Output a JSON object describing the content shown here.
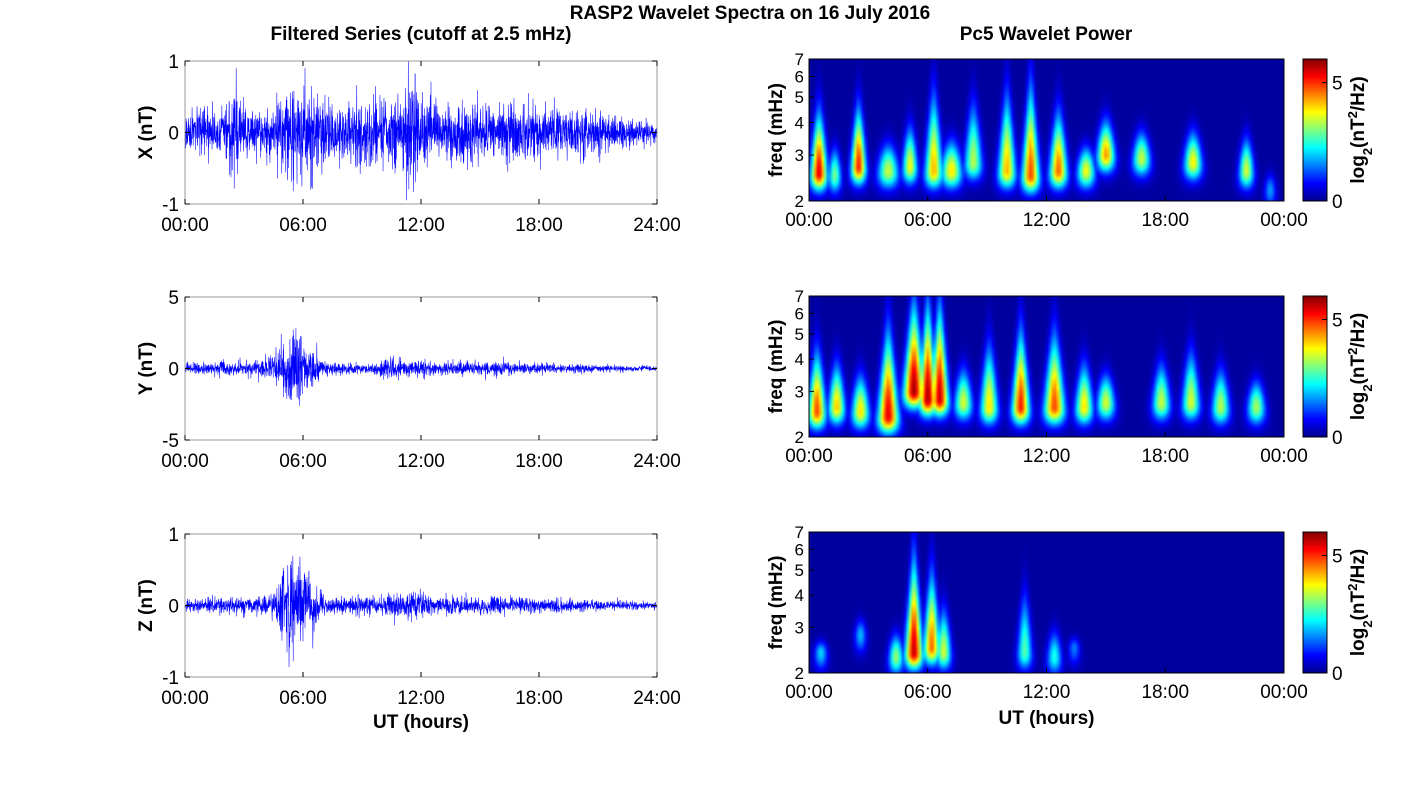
{
  "figure": {
    "title": "RASP2 Wavelet Spectra on 16 July 2016",
    "left_title": "Filtered Series (cutoff at 2.5 mHz)",
    "right_title": "Pc5 Wavelet Power"
  },
  "colors": {
    "series_line": "#0000ff",
    "spectrum_background": "#00008f",
    "colormap": "jet"
  },
  "chart_data": [
    {
      "type": "line",
      "component": "X",
      "ylabel": "X (nT)",
      "xlabel": "",
      "x_ticks": [
        "00:00",
        "06:00",
        "12:00",
        "18:00",
        "24:00"
      ],
      "xlim_hours": [
        0,
        24
      ],
      "y_ticks": [
        "1",
        "0",
        "-1"
      ],
      "ylim": [
        -1,
        1
      ],
      "grid": false,
      "series": [
        {
          "hour_start": 0,
          "hour_step": 0.5,
          "amplitude_envelope": [
            0.22,
            0.25,
            0.28,
            0.3,
            0.28,
            0.55,
            0.3,
            0.28,
            0.27,
            0.3,
            0.5,
            0.55,
            0.6,
            0.55,
            0.4,
            0.35,
            0.38,
            0.4,
            0.45,
            0.4,
            0.38,
            0.4,
            0.42,
            0.65,
            0.45,
            0.35,
            0.35,
            0.35,
            0.4,
            0.38,
            0.35,
            0.3,
            0.38,
            0.4,
            0.35,
            0.32,
            0.3,
            0.3,
            0.28,
            0.28,
            0.25,
            0.3,
            0.25,
            0.22,
            0.2,
            0.22,
            0.18,
            0.15,
            0.15
          ],
          "peaks": [
            {
              "hour": 2.6,
              "value": 0.9
            },
            {
              "hour": 6.1,
              "value": 0.9
            },
            {
              "hour": 11.7,
              "value": 0.82
            },
            {
              "hour": 5.5,
              "value": -0.82
            },
            {
              "hour": 6.4,
              "value": -0.8
            }
          ]
        }
      ]
    },
    {
      "type": "line",
      "component": "Y",
      "ylabel": "Y (nT)",
      "xlabel": "",
      "x_ticks": [
        "00:00",
        "06:00",
        "12:00",
        "18:00",
        "24:00"
      ],
      "xlim_hours": [
        0,
        24
      ],
      "y_ticks": [
        "5",
        "0",
        "-5"
      ],
      "ylim": [
        -5,
        5
      ],
      "grid": false,
      "series": [
        {
          "hour_start": 0,
          "hour_step": 0.5,
          "amplitude_envelope": [
            0.3,
            0.35,
            0.3,
            0.35,
            0.4,
            0.4,
            0.45,
            0.45,
            0.6,
            0.7,
            1.8,
            2.6,
            1.6,
            1.2,
            0.5,
            0.4,
            0.35,
            0.35,
            0.35,
            0.4,
            0.45,
            0.6,
            0.55,
            0.45,
            0.6,
            0.45,
            0.4,
            0.4,
            0.4,
            0.45,
            0.4,
            0.45,
            0.5,
            0.45,
            0.35,
            0.3,
            0.35,
            0.35,
            0.3,
            0.3,
            0.3,
            0.25,
            0.25,
            0.25,
            0.2,
            0.2,
            0.2,
            0.18,
            0.15
          ],
          "peaks": [
            {
              "hour": 5.5,
              "value": 2.7
            },
            {
              "hour": 5.7,
              "value": -2.0
            },
            {
              "hour": 6.7,
              "value": 1.8
            }
          ]
        }
      ]
    },
    {
      "type": "line",
      "component": "Z",
      "ylabel": "Z (nT)",
      "xlabel": "UT (hours)",
      "x_ticks": [
        "00:00",
        "06:00",
        "12:00",
        "18:00",
        "24:00"
      ],
      "xlim_hours": [
        0,
        24
      ],
      "y_ticks": [
        "1",
        "0",
        "-1"
      ],
      "ylim": [
        -1,
        1
      ],
      "grid": false,
      "series": [
        {
          "hour_start": 0,
          "hour_step": 0.5,
          "amplitude_envelope": [
            0.06,
            0.08,
            0.08,
            0.1,
            0.1,
            0.12,
            0.1,
            0.1,
            0.12,
            0.15,
            0.45,
            0.6,
            0.45,
            0.3,
            0.12,
            0.12,
            0.1,
            0.1,
            0.12,
            0.12,
            0.12,
            0.15,
            0.15,
            0.2,
            0.18,
            0.12,
            0.1,
            0.12,
            0.12,
            0.1,
            0.1,
            0.12,
            0.12,
            0.1,
            0.1,
            0.1,
            0.08,
            0.08,
            0.08,
            0.08,
            0.07,
            0.07,
            0.07,
            0.06,
            0.06,
            0.06,
            0.05,
            0.05,
            0.05
          ],
          "peaks": [
            {
              "hour": 5.4,
              "value": 0.62
            },
            {
              "hour": 5.5,
              "value": -0.78
            },
            {
              "hour": 6.3,
              "value": 0.48
            },
            {
              "hour": 6.5,
              "value": -0.6
            }
          ]
        }
      ]
    },
    {
      "type": "heatmap",
      "component": "X",
      "ylabel": "freq (mHz)",
      "xlabel": "",
      "x_ticks": [
        "00:00",
        "06:00",
        "12:00",
        "18:00",
        "00:00"
      ],
      "xlim_hours": [
        0,
        24
      ],
      "y_scale": "log",
      "y_ticks": [
        "7",
        "6",
        "5",
        "4",
        "3",
        "2"
      ],
      "ylim_mhz": [
        2,
        7
      ],
      "colorbar": {
        "label_main": "log",
        "label_sub": "2",
        "label_rest": "(nT",
        "label_sup": "2",
        "label_end": "/Hz)",
        "ticks": [
          "5",
          "0"
        ],
        "clim": [
          0,
          6
        ]
      },
      "blobs": [
        {
          "hour": 0.5,
          "freq_mhz": 2.55,
          "power": 5.6,
          "width_hours": 0.28,
          "f_hi": 4.6
        },
        {
          "hour": 1.3,
          "freq_mhz": 2.5,
          "power": 3.0,
          "width_hours": 0.22,
          "f_hi": 3.3
        },
        {
          "hour": 2.5,
          "freq_mhz": 2.7,
          "power": 5.3,
          "width_hours": 0.25,
          "f_hi": 4.8
        },
        {
          "hour": 4.0,
          "freq_mhz": 2.6,
          "power": 3.5,
          "width_hours": 0.35,
          "f_hi": 3.4
        },
        {
          "hour": 5.1,
          "freq_mhz": 2.7,
          "power": 3.8,
          "width_hours": 0.25,
          "f_hi": 4.0
        },
        {
          "hour": 6.3,
          "freq_mhz": 2.6,
          "power": 4.3,
          "width_hours": 0.3,
          "f_hi": 5.5
        },
        {
          "hour": 7.2,
          "freq_mhz": 2.6,
          "power": 4.0,
          "width_hours": 0.35,
          "f_hi": 3.5
        },
        {
          "hour": 8.3,
          "freq_mhz": 2.8,
          "power": 3.4,
          "width_hours": 0.3,
          "f_hi": 5.0
        },
        {
          "hour": 10.0,
          "freq_mhz": 2.6,
          "power": 4.3,
          "width_hours": 0.3,
          "f_hi": 5.5
        },
        {
          "hour": 11.2,
          "freq_mhz": 2.5,
          "power": 5.0,
          "width_hours": 0.3,
          "f_hi": 6.0
        },
        {
          "hour": 12.6,
          "freq_mhz": 2.6,
          "power": 4.8,
          "width_hours": 0.3,
          "f_hi": 4.6
        },
        {
          "hour": 14.0,
          "freq_mhz": 2.6,
          "power": 3.8,
          "width_hours": 0.3,
          "f_hi": 3.3
        },
        {
          "hour": 15.0,
          "freq_mhz": 3.0,
          "power": 4.5,
          "width_hours": 0.3,
          "f_hi": 4.2
        },
        {
          "hour": 16.8,
          "freq_mhz": 2.9,
          "power": 3.5,
          "width_hours": 0.3,
          "f_hi": 3.8
        },
        {
          "hour": 19.4,
          "freq_mhz": 2.8,
          "power": 3.9,
          "width_hours": 0.3,
          "f_hi": 3.8
        },
        {
          "hour": 22.1,
          "freq_mhz": 2.6,
          "power": 3.6,
          "width_hours": 0.25,
          "f_hi": 3.6
        },
        {
          "hour": 23.3,
          "freq_mhz": 2.2,
          "power": 1.6,
          "width_hours": 0.2,
          "f_hi": 2.6
        }
      ]
    },
    {
      "type": "heatmap",
      "component": "Y",
      "ylabel": "freq (mHz)",
      "xlabel": "",
      "x_ticks": [
        "00:00",
        "06:00",
        "12:00",
        "18:00",
        "00:00"
      ],
      "xlim_hours": [
        0,
        24
      ],
      "y_scale": "log",
      "y_ticks": [
        "7",
        "6",
        "5",
        "4",
        "3",
        "2"
      ],
      "ylim_mhz": [
        2,
        7
      ],
      "colorbar": {
        "label_main": "log",
        "label_sub": "2",
        "label_rest": "(nT",
        "label_sup": "2",
        "label_end": "/Hz)",
        "ticks": [
          "5",
          "0"
        ],
        "clim": [
          0,
          6
        ]
      },
      "blobs": [
        {
          "hour": 0.4,
          "freq_mhz": 2.5,
          "power": 5.0,
          "width_hours": 0.3,
          "f_hi": 4.5
        },
        {
          "hour": 1.4,
          "freq_mhz": 2.6,
          "power": 4.2,
          "width_hours": 0.28,
          "f_hi": 4.0
        },
        {
          "hour": 2.6,
          "freq_mhz": 2.5,
          "power": 4.0,
          "width_hours": 0.3,
          "f_hi": 3.6
        },
        {
          "hour": 4.0,
          "freq_mhz": 2.4,
          "power": 5.6,
          "width_hours": 0.35,
          "f_hi": 5.5
        },
        {
          "hour": 5.3,
          "freq_mhz": 3.0,
          "power": 6.0,
          "width_hours": 0.35,
          "f_hi": 7.0
        },
        {
          "hour": 6.0,
          "freq_mhz": 2.8,
          "power": 6.0,
          "width_hours": 0.3,
          "f_hi": 7.0
        },
        {
          "hour": 6.6,
          "freq_mhz": 2.8,
          "power": 5.8,
          "width_hours": 0.3,
          "f_hi": 7.0
        },
        {
          "hour": 7.8,
          "freq_mhz": 2.7,
          "power": 3.6,
          "width_hours": 0.3,
          "f_hi": 3.8
        },
        {
          "hour": 9.1,
          "freq_mhz": 2.6,
          "power": 4.0,
          "width_hours": 0.3,
          "f_hi": 4.8
        },
        {
          "hour": 10.7,
          "freq_mhz": 2.6,
          "power": 5.3,
          "width_hours": 0.3,
          "f_hi": 5.5
        },
        {
          "hour": 12.4,
          "freq_mhz": 2.6,
          "power": 5.0,
          "width_hours": 0.35,
          "f_hi": 5.3
        },
        {
          "hour": 13.9,
          "freq_mhz": 2.6,
          "power": 4.0,
          "width_hours": 0.3,
          "f_hi": 4.0
        },
        {
          "hour": 15.0,
          "freq_mhz": 2.7,
          "power": 3.6,
          "width_hours": 0.3,
          "f_hi": 3.6
        },
        {
          "hour": 17.8,
          "freq_mhz": 2.7,
          "power": 3.5,
          "width_hours": 0.3,
          "f_hi": 4.0
        },
        {
          "hour": 19.3,
          "freq_mhz": 2.7,
          "power": 3.6,
          "width_hours": 0.3,
          "f_hi": 4.5
        },
        {
          "hour": 20.8,
          "freq_mhz": 2.6,
          "power": 3.4,
          "width_hours": 0.3,
          "f_hi": 3.8
        },
        {
          "hour": 22.6,
          "freq_mhz": 2.6,
          "power": 3.3,
          "width_hours": 0.3,
          "f_hi": 3.4
        }
      ]
    },
    {
      "type": "heatmap",
      "component": "Z",
      "ylabel": "freq (mHz)",
      "xlabel": "UT (hours)",
      "x_ticks": [
        "00:00",
        "06:00",
        "12:00",
        "18:00",
        "00:00"
      ],
      "xlim_hours": [
        0,
        24
      ],
      "y_scale": "log",
      "y_ticks": [
        "7",
        "6",
        "5",
        "4",
        "3",
        "2"
      ],
      "ylim_mhz": [
        2,
        7
      ],
      "colorbar": {
        "label_main": "log",
        "label_sub": "2",
        "label_rest": "(nT",
        "label_sup": "2",
        "label_end": "/Hz)",
        "ticks": [
          "5",
          "0"
        ],
        "clim": [
          0,
          6
        ]
      },
      "blobs": [
        {
          "hour": 0.6,
          "freq_mhz": 2.4,
          "power": 2.0,
          "width_hours": 0.22,
          "f_hi": 2.7
        },
        {
          "hour": 2.6,
          "freq_mhz": 2.8,
          "power": 1.8,
          "width_hours": 0.2,
          "f_hi": 3.3
        },
        {
          "hour": 4.4,
          "freq_mhz": 2.3,
          "power": 3.2,
          "width_hours": 0.25,
          "f_hi": 2.9
        },
        {
          "hour": 5.3,
          "freq_mhz": 2.4,
          "power": 5.8,
          "width_hours": 0.3,
          "f_hi": 6.0
        },
        {
          "hour": 6.2,
          "freq_mhz": 2.5,
          "power": 4.8,
          "width_hours": 0.28,
          "f_hi": 5.2
        },
        {
          "hour": 6.8,
          "freq_mhz": 2.4,
          "power": 3.6,
          "width_hours": 0.25,
          "f_hi": 3.7
        },
        {
          "hour": 10.9,
          "freq_mhz": 2.4,
          "power": 2.8,
          "width_hours": 0.25,
          "f_hi": 4.3
        },
        {
          "hour": 12.4,
          "freq_mhz": 2.3,
          "power": 2.4,
          "width_hours": 0.25,
          "f_hi": 3.0
        },
        {
          "hour": 13.4,
          "freq_mhz": 2.5,
          "power": 1.4,
          "width_hours": 0.2,
          "f_hi": 2.8
        }
      ]
    }
  ]
}
